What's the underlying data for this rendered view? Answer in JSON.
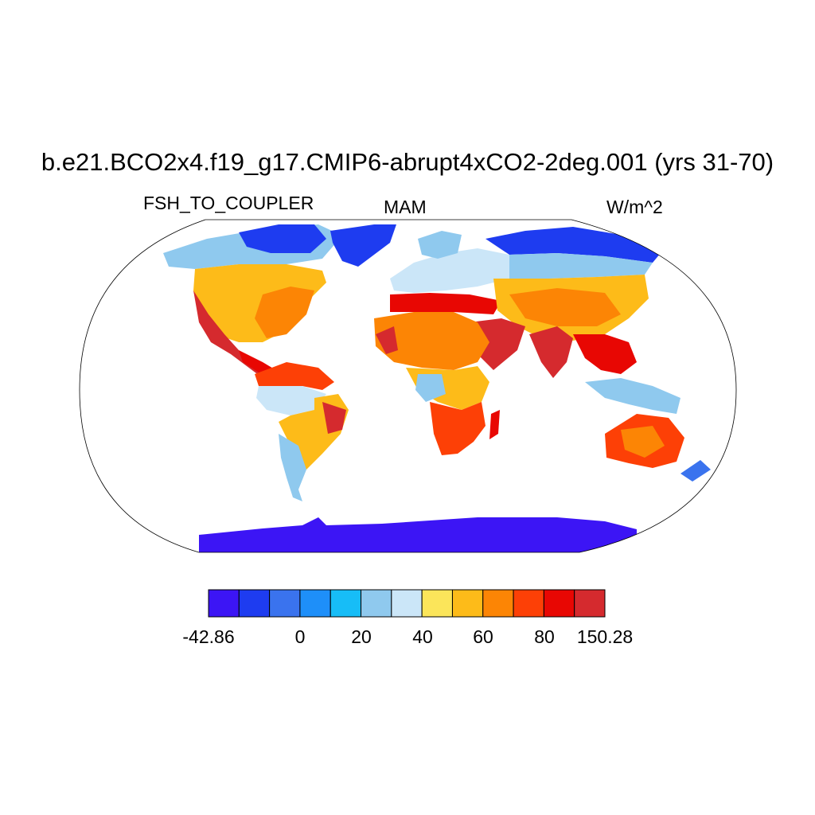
{
  "title": "b.e21.BCO2x4.f19_g17.CMIP6-abrupt4xCO2-2deg.001 (yrs 31-70)",
  "left_label": "FSH_TO_COUPLER",
  "center_label": "MAM",
  "right_label": "W/m^2",
  "colorbar": {
    "colors": [
      "#3c15f5",
      "#1e3cf0",
      "#3a73ee",
      "#1e8ff9",
      "#17bdf7",
      "#8fc9ee",
      "#cbe6f8",
      "#fbe55a",
      "#fdbb19",
      "#fc8505",
      "#fd4006",
      "#e80703",
      "#d52a2e"
    ],
    "tick_labels": [
      "-42.86",
      "0",
      "20",
      "40",
      "60",
      "80",
      "150.28"
    ]
  }
}
